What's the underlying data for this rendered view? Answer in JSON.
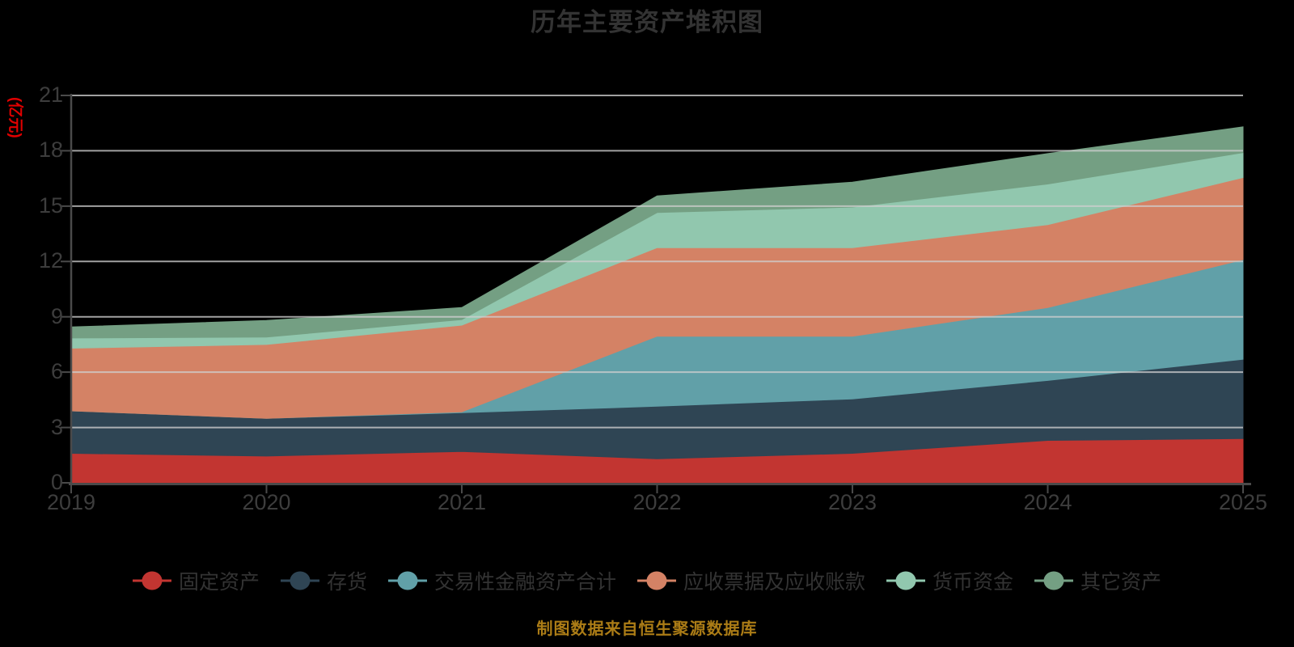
{
  "title": "历年主要资产堆积图",
  "footer": {
    "source_note": "制图数据来自恒生聚源数据库"
  },
  "colors": {
    "background": "#000000",
    "title_text": "#333333",
    "axis_label_text": "#3d3d3d",
    "axis_line": "#4a4a4a",
    "gridline": "#cfcfcf",
    "unit_label_text": "#e00000",
    "legend_text": "#333333",
    "source_note_text": "#ab7c16"
  },
  "chart_data": {
    "type": "area",
    "stacked": true,
    "title": "历年主要资产堆积图",
    "ylabel": "(亿元)",
    "xlabel": "",
    "ylim": [
      0,
      21
    ],
    "y_ticks": [
      0,
      3,
      6,
      9,
      12,
      15,
      18,
      21
    ],
    "grid": true,
    "legend_position": "bottom",
    "categories": [
      "2019",
      "2020",
      "2021",
      "2022",
      "2023",
      "2024",
      "2025"
    ],
    "series": [
      {
        "name": "固定资产",
        "color": "#c23531",
        "values": [
          1.6,
          1.45,
          1.7,
          1.3,
          1.6,
          2.3,
          2.4
        ]
      },
      {
        "name": "存货",
        "color": "#2f4554",
        "values": [
          2.3,
          2.05,
          2.1,
          2.85,
          2.95,
          3.25,
          4.3
        ]
      },
      {
        "name": "交易性金融资产合计",
        "color": "#61a0a8",
        "values": [
          0,
          0,
          0.05,
          3.8,
          3.4,
          3.95,
          5.4
        ]
      },
      {
        "name": "应收票据及应收账款",
        "color": "#d48265",
        "values": [
          3.4,
          4.0,
          4.7,
          4.8,
          4.8,
          4.5,
          4.45
        ]
      },
      {
        "name": "货币资金",
        "color": "#91c7ae",
        "values": [
          0.55,
          0.4,
          0.3,
          1.9,
          2.2,
          2.2,
          1.35
        ]
      },
      {
        "name": "其它资产",
        "color": "#749f83",
        "values": [
          0.6,
          0.9,
          0.65,
          0.9,
          1.35,
          1.65,
          1.4
        ]
      }
    ]
  }
}
